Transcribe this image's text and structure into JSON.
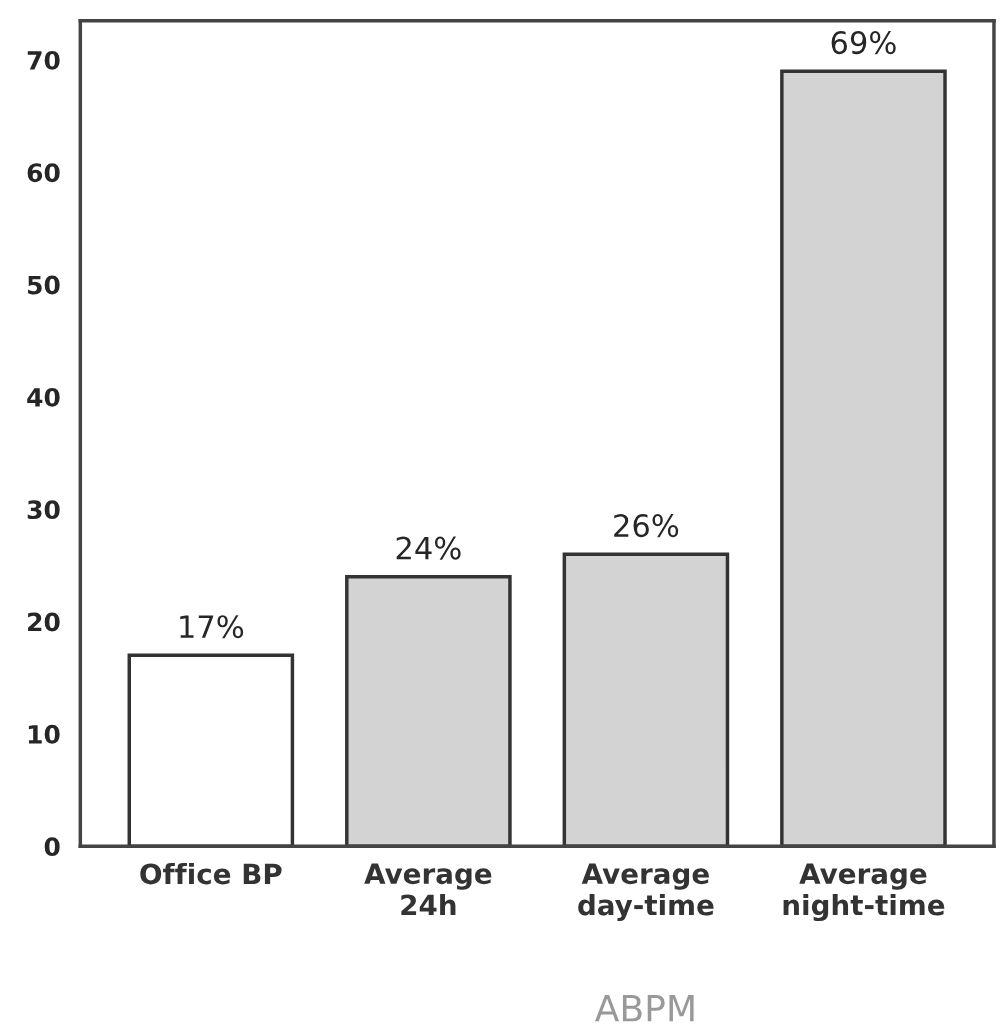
{
  "chart_data": {
    "type": "bar",
    "categories": [
      "Office BP",
      "Average\n24h",
      "Average\nday-time",
      "Average\nnight-time"
    ],
    "values": [
      17,
      24,
      26,
      69
    ],
    "colors": [
      "#ffffff",
      "#d3d3d3",
      "#d3d3d3",
      "#d3d3d3"
    ],
    "value_labels": [
      "17%",
      "24%",
      "26%",
      "69%"
    ],
    "ylim": [
      0,
      73.5
    ],
    "yticks": [
      0,
      10,
      20,
      30,
      40,
      50,
      60,
      70
    ],
    "grid": false,
    "annotations": [
      "ABPM"
    ]
  }
}
